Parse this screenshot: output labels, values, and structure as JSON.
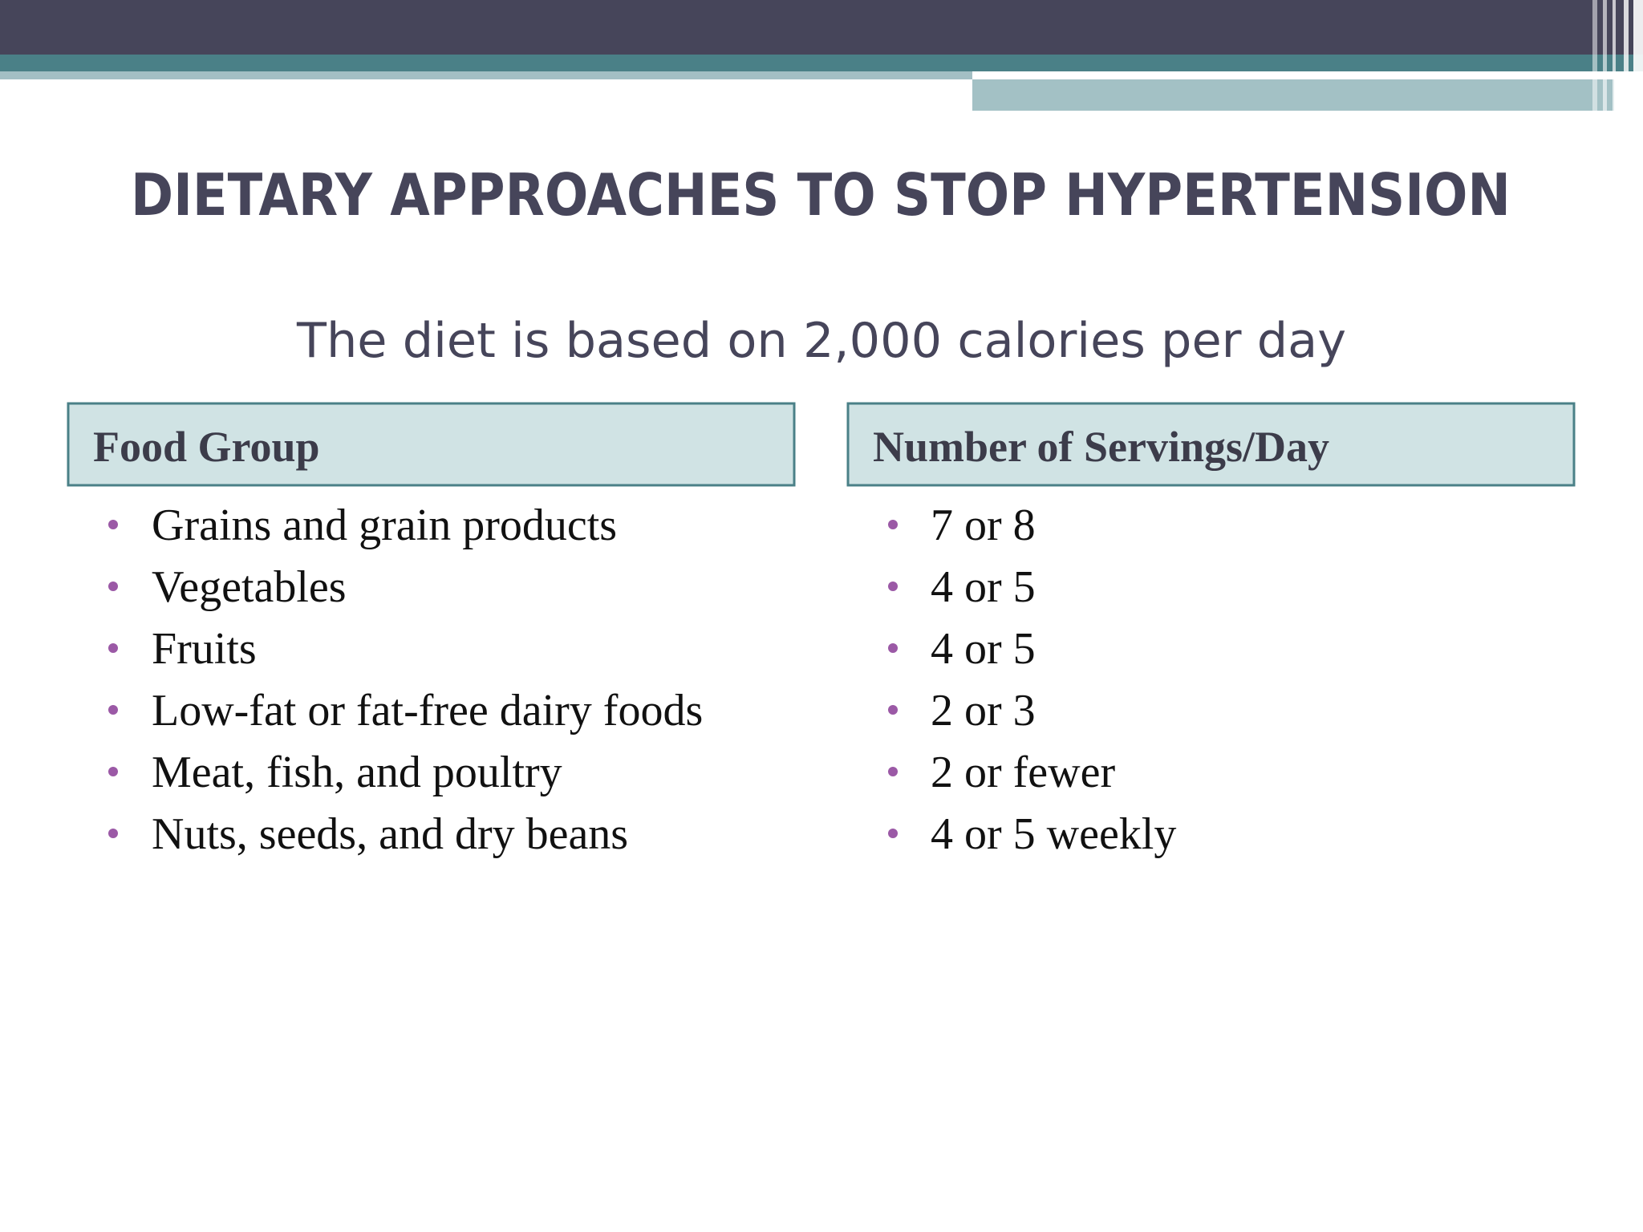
{
  "slide": {
    "title": "DIETARY APPROACHES TO STOP HYPERTENSION",
    "subtitle": "The diet is based on 2,000 calories per day",
    "columns": [
      {
        "header": "Food Group",
        "items": [
          "Grains and grain products",
          "Vegetables",
          "Fruits",
          "Low-fat or fat-free dairy foods",
          "Meat, fish, and poultry",
          "Nuts, seeds, and dry beans"
        ]
      },
      {
        "header": "Number of Servings/Day",
        "items": [
          "7 or 8",
          "4 or 5",
          "4 or 5",
          "2 or 3",
          "2 or fewer",
          "4 or 5 weekly"
        ]
      }
    ]
  }
}
